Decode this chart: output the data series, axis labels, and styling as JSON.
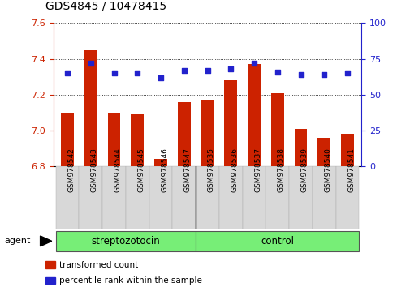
{
  "title": "GDS4845 / 10478415",
  "samples": [
    "GSM978542",
    "GSM978543",
    "GSM978544",
    "GSM978545",
    "GSM978546",
    "GSM978547",
    "GSM978535",
    "GSM978536",
    "GSM978537",
    "GSM978538",
    "GSM978539",
    "GSM978540",
    "GSM978541"
  ],
  "bar_values": [
    7.1,
    7.45,
    7.1,
    7.09,
    6.84,
    7.16,
    7.17,
    7.28,
    7.37,
    7.21,
    7.01,
    6.96,
    6.98
  ],
  "percentile_values": [
    65,
    72,
    65,
    65,
    62,
    67,
    67,
    68,
    72,
    66,
    64,
    64,
    65
  ],
  "bar_color": "#cc2200",
  "percentile_color": "#2222cc",
  "ylim_left": [
    6.8,
    7.6
  ],
  "ylim_right": [
    0,
    100
  ],
  "yticks_left": [
    6.8,
    7.0,
    7.2,
    7.4,
    7.6
  ],
  "yticks_right": [
    0,
    25,
    50,
    75,
    100
  ],
  "group_labels": [
    "streptozotocin",
    "control"
  ],
  "group_starts": [
    0,
    6
  ],
  "group_ends": [
    6,
    13
  ],
  "group_color": "#77ee77",
  "group_divider": 6,
  "agent_label": "agent",
  "legend": [
    {
      "label": "transformed count",
      "color": "#cc2200"
    },
    {
      "label": "percentile rank within the sample",
      "color": "#2222cc"
    }
  ],
  "background_color": "#ffffff",
  "plot_bg": "#ffffff",
  "grid_color": "#000000",
  "tick_color_left": "#cc2200",
  "tick_color_right": "#2222cc",
  "xticklabel_bg": "#d8d8d8"
}
